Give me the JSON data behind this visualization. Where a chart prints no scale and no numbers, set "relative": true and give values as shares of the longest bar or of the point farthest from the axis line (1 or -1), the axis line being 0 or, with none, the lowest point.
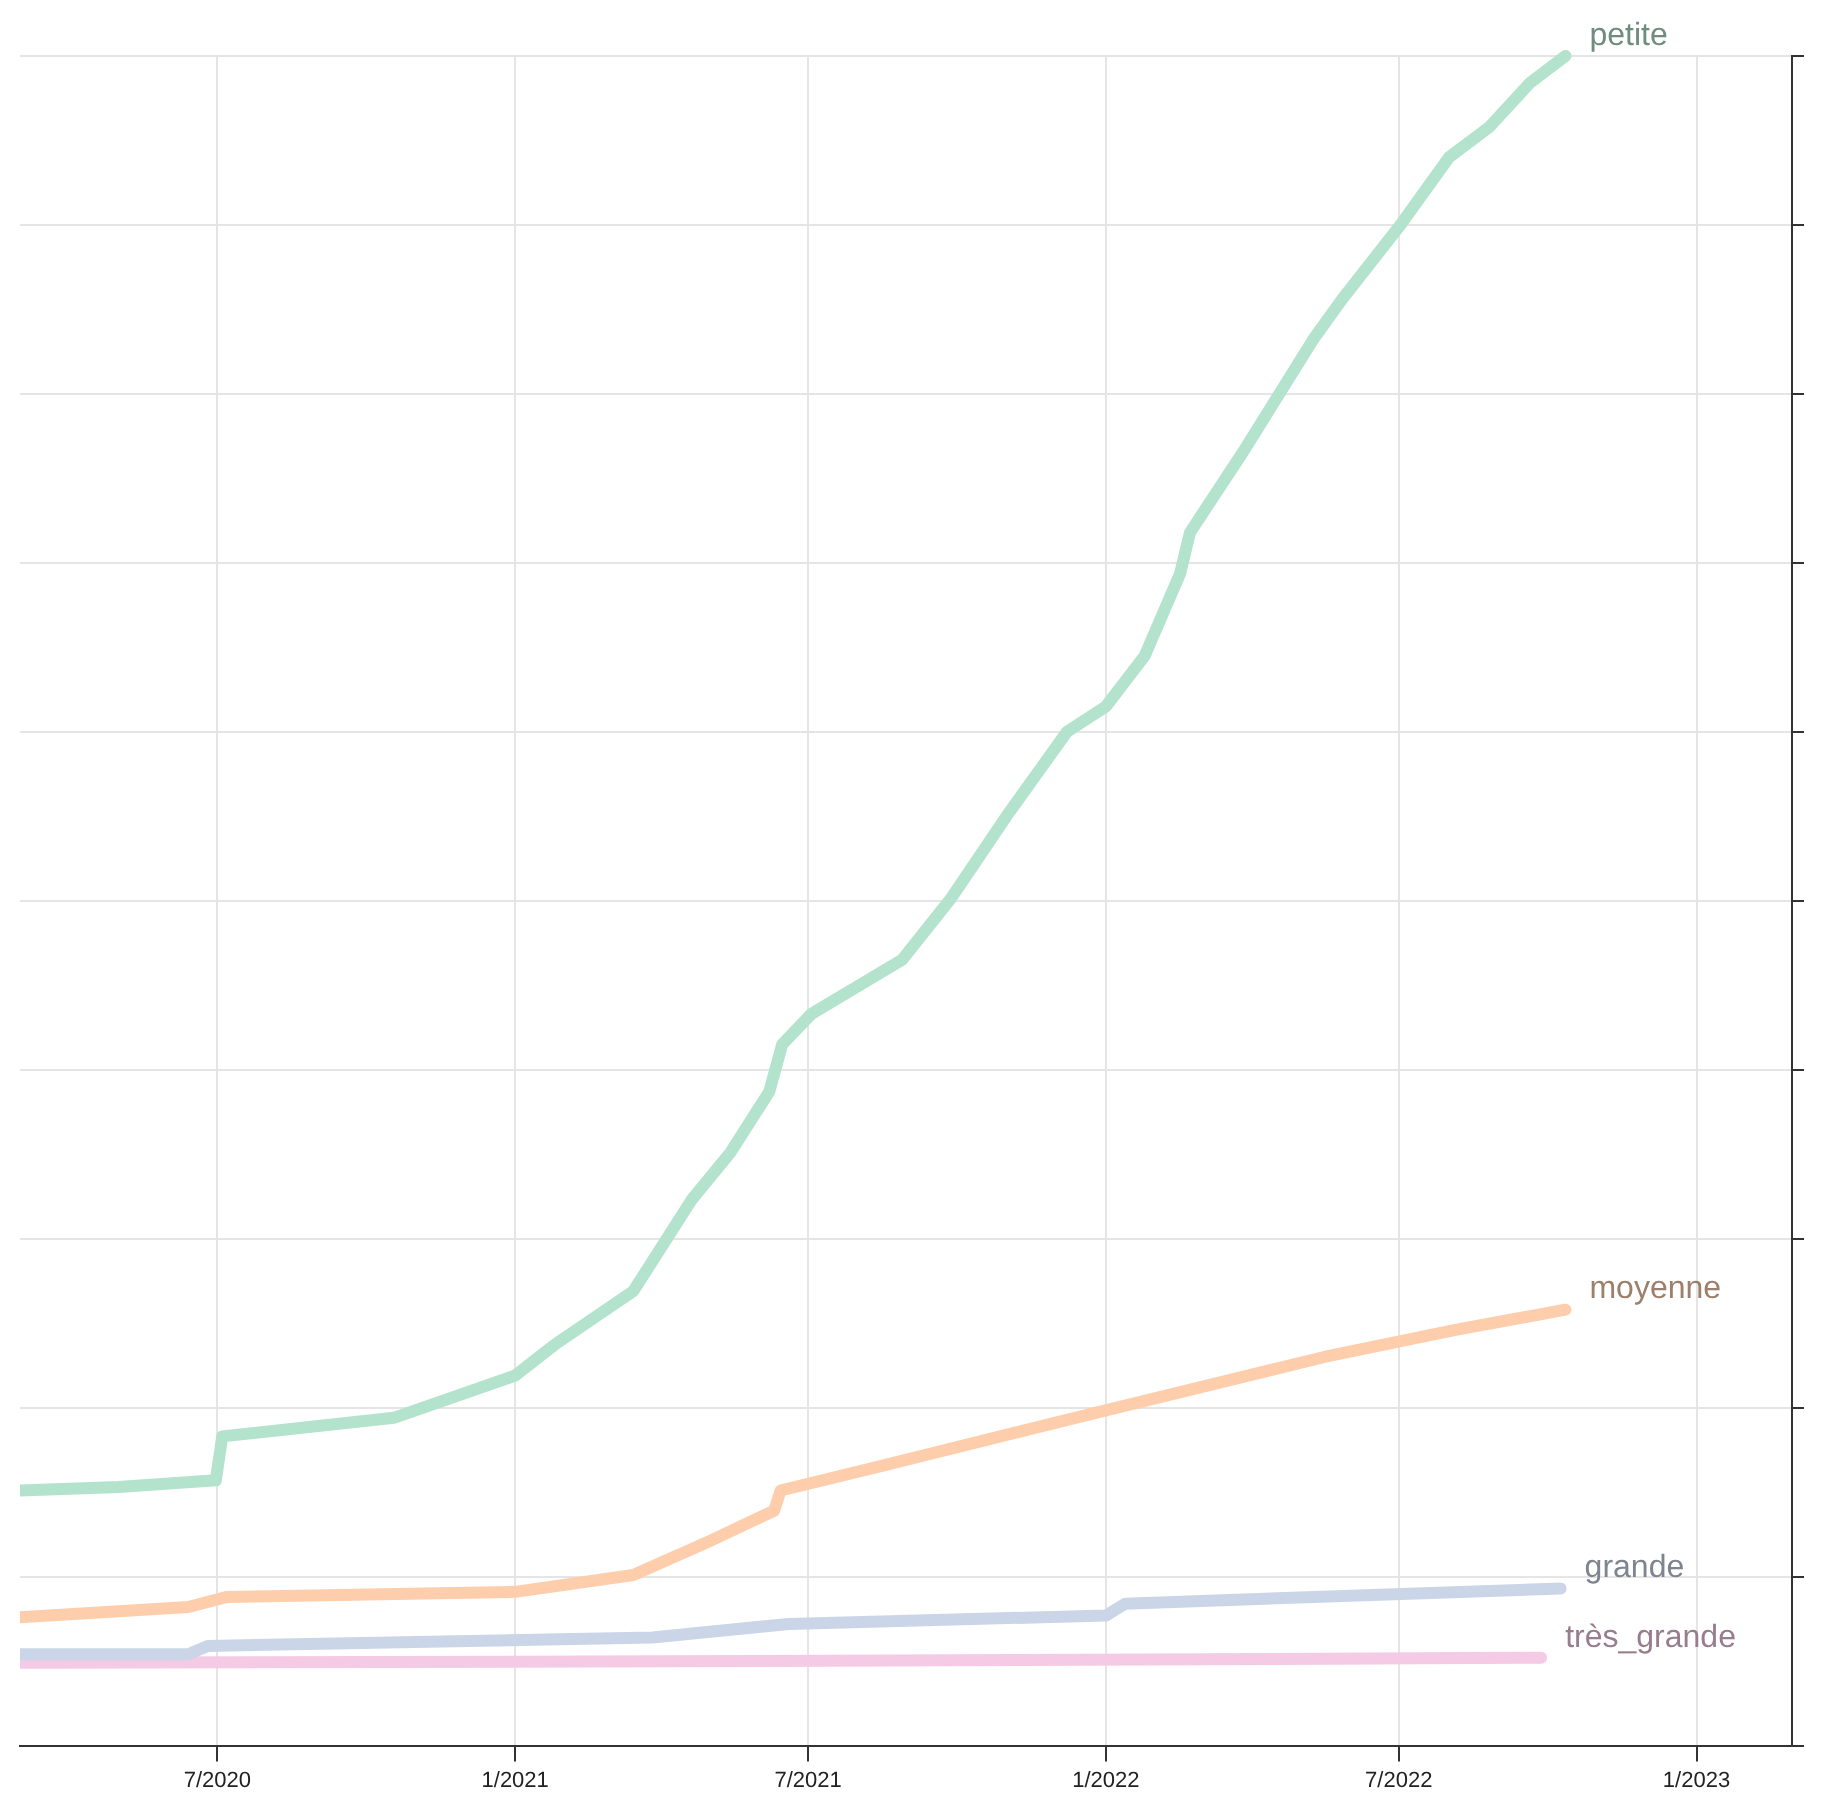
{
  "chart_data": {
    "type": "line",
    "relative": true,
    "grid": true,
    "legend": false,
    "marker": "none",
    "line_style": "solid",
    "xlim": [
      "2020-03-01",
      "2023-03-01"
    ],
    "xticks": [
      {
        "value": "2020-07-01",
        "label": "7/2020"
      },
      {
        "value": "2021-01-01",
        "label": "1/2021"
      },
      {
        "value": "2021-07-01",
        "label": "7/2021"
      },
      {
        "value": "2022-01-01",
        "label": "1/2022"
      },
      {
        "value": "2022-07-01",
        "label": "7/2022"
      },
      {
        "value": "2023-01-01",
        "label": "1/2023"
      }
    ],
    "series": [
      {
        "name": "petite",
        "color": "#b3e2cd",
        "x": [
          "2020-03-01",
          "2020-05-01",
          "2020-06-30",
          "2020-07-04",
          "2020-10-18",
          "2021-01-01",
          "2021-01-25",
          "2021-03-15",
          "2021-04-20",
          "2021-05-14",
          "2021-06-07",
          "2021-06-15",
          "2021-07-03",
          "2021-08-28",
          "2021-09-27",
          "2021-11-02",
          "2021-12-08",
          "2022-01-01",
          "2022-01-25",
          "2022-02-16",
          "2022-02-22",
          "2022-03-27",
          "2022-05-09",
          "2022-05-27",
          "2022-07-02",
          "2022-08-01",
          "2022-08-26",
          "2022-09-20",
          "2022-10-12"
        ],
        "values": [
          0.151,
          0.153,
          0.157,
          0.183,
          0.194,
          0.219,
          0.237,
          0.269,
          0.323,
          0.351,
          0.387,
          0.415,
          0.433,
          0.465,
          0.501,
          0.552,
          0.6,
          0.615,
          0.645,
          0.694,
          0.718,
          0.766,
          0.832,
          0.856,
          0.9,
          0.94,
          0.958,
          0.984,
          1
        ]
      },
      {
        "name": "moyenne",
        "color": "#fdcdac",
        "x": [
          "2020-03-01",
          "2020-06-13",
          "2020-07-07",
          "2021-01-01",
          "2021-03-15",
          "2021-05-01",
          "2021-06-10",
          "2021-06-14",
          "2021-08-13",
          "2021-12-30",
          "2022-05-16",
          "2022-08-05",
          "2022-10-12"
        ],
        "values": [
          0.076,
          0.082,
          0.088,
          0.091,
          0.101,
          0.121,
          0.139,
          0.151,
          0.165,
          0.198,
          0.23,
          0.246,
          0.258
        ]
      },
      {
        "name": "grande",
        "color": "#cbd5e8",
        "x": [
          "2020-03-01",
          "2020-06-13",
          "2020-06-25",
          "2021-03-27",
          "2021-06-19",
          "2022-01-01",
          "2022-01-13",
          "2022-10-09"
        ],
        "values": [
          0.054,
          0.054,
          0.059,
          0.064,
          0.072,
          0.077,
          0.084,
          0.093
        ]
      },
      {
        "name": "très_grande",
        "color": "#f4cae4",
        "x": [
          "2020-03-01",
          "2021-06-01",
          "2022-09-27"
        ],
        "values": [
          0.049,
          0.05,
          0.052
        ]
      }
    ]
  }
}
